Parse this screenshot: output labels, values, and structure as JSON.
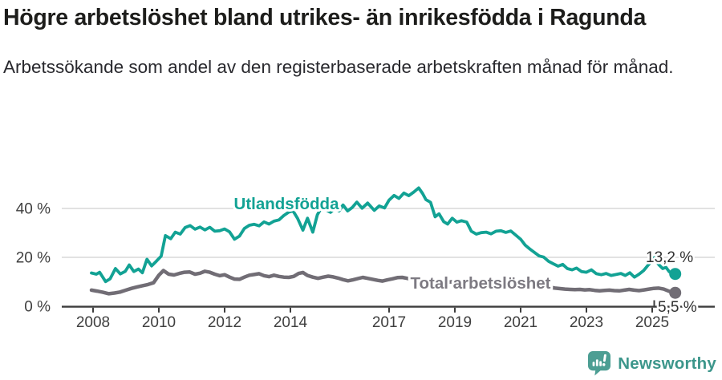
{
  "page": {
    "title": "Högre arbetslöshet bland utrikes- än inrikesfödda i Ragunda",
    "subtitle": "Arbetssökande som andel av den registerbaserade arbetskraften månad för månad."
  },
  "footer": {
    "brand": "Newsworthy",
    "logo_icon": "newsworthy-speech-bubble-bar-chart-icon"
  },
  "colors": {
    "foreign_born_line": "#12a294",
    "total_line": "#716d75",
    "total_label": "#7d7a82",
    "axis": "#3d3d3d",
    "tick_text": "#3f3f3f",
    "gridline": "#d9d9d9",
    "end_label_text": "#2f2f2f",
    "brand_text": "#3c968b",
    "brand_icon": "#4c9e93",
    "background": "#ffffff"
  },
  "chart_data": {
    "type": "line",
    "title": "Högre arbetslöshet bland utrikes- än inrikesfödda i Ragunda",
    "subtitle": "Arbetssökande som andel av den registerbaserade arbetskraften månad för månad.",
    "unit": "%",
    "frequency": "monthly",
    "grid": "horizontal-only",
    "legend_position": "inline-series-labels",
    "x_axis": {
      "ticks": [
        2008,
        2010,
        2012,
        2014,
        2017,
        2019,
        2021,
        2023,
        2025
      ],
      "tick_labels": [
        "2008",
        "2010",
        "2012",
        "2014",
        "2017",
        "2019",
        "2021",
        "2023",
        "2025"
      ],
      "range_years": [
        2007.0,
        2026.9
      ]
    },
    "y_axis": {
      "ticks": [
        0,
        20,
        40
      ],
      "tick_labels": [
        "0 %",
        "20 %",
        "40 %"
      ],
      "gridlines": [
        20,
        40
      ],
      "range": [
        0,
        50
      ]
    },
    "series": [
      {
        "name": "Utlandsfödda",
        "color_key": "foreign_born_line",
        "label_color_key": "foreign_born_line",
        "end_label": "13,2 %",
        "end_value": 13.2,
        "points": [
          [
            2007.95,
            13.6
          ],
          [
            2008.1,
            13.1
          ],
          [
            2008.2,
            13.9
          ],
          [
            2008.38,
            10.1
          ],
          [
            2008.52,
            11.2
          ],
          [
            2008.68,
            15.4
          ],
          [
            2008.83,
            13.2
          ],
          [
            2008.98,
            14.3
          ],
          [
            2009.1,
            16.9
          ],
          [
            2009.24,
            14.2
          ],
          [
            2009.38,
            15.2
          ],
          [
            2009.5,
            13.7
          ],
          [
            2009.64,
            19.2
          ],
          [
            2009.78,
            16.5
          ],
          [
            2009.93,
            18.5
          ],
          [
            2010.07,
            20.5
          ],
          [
            2010.2,
            28.9
          ],
          [
            2010.36,
            27.6
          ],
          [
            2010.5,
            30.3
          ],
          [
            2010.65,
            29.5
          ],
          [
            2010.8,
            32.2
          ],
          [
            2010.95,
            33.0
          ],
          [
            2011.1,
            31.5
          ],
          [
            2011.25,
            32.4
          ],
          [
            2011.4,
            31.2
          ],
          [
            2011.55,
            32.3
          ],
          [
            2011.7,
            30.7
          ],
          [
            2011.85,
            30.9
          ],
          [
            2012.0,
            31.6
          ],
          [
            2012.15,
            30.4
          ],
          [
            2012.3,
            27.4
          ],
          [
            2012.45,
            28.7
          ],
          [
            2012.6,
            31.8
          ],
          [
            2012.75,
            33.1
          ],
          [
            2012.9,
            33.5
          ],
          [
            2013.05,
            32.9
          ],
          [
            2013.2,
            34.5
          ],
          [
            2013.35,
            33.6
          ],
          [
            2013.5,
            34.8
          ],
          [
            2013.65,
            35.3
          ],
          [
            2013.8,
            37.1
          ],
          [
            2013.95,
            38.5
          ],
          [
            2014.08,
            39.0
          ],
          [
            2014.22,
            35.9
          ],
          [
            2014.38,
            31.1
          ],
          [
            2014.52,
            36.0
          ],
          [
            2014.68,
            30.3
          ],
          [
            2014.82,
            37.4
          ],
          [
            2014.95,
            40.5
          ],
          [
            2015.1,
            39.3
          ],
          [
            2015.22,
            38.4
          ],
          [
            2015.35,
            40.0
          ],
          [
            2015.48,
            39.0
          ],
          [
            2015.6,
            41.4
          ],
          [
            2015.74,
            39.0
          ],
          [
            2015.88,
            40.4
          ],
          [
            2016.02,
            42.6
          ],
          [
            2016.18,
            40.1
          ],
          [
            2016.35,
            42.2
          ],
          [
            2016.55,
            39.2
          ],
          [
            2016.7,
            41.0
          ],
          [
            2016.86,
            40.2
          ],
          [
            2017.0,
            43.4
          ],
          [
            2017.15,
            45.3
          ],
          [
            2017.3,
            44.1
          ],
          [
            2017.45,
            46.3
          ],
          [
            2017.6,
            45.2
          ],
          [
            2017.75,
            46.7
          ],
          [
            2017.9,
            48.4
          ],
          [
            2018.02,
            46.1
          ],
          [
            2018.12,
            43.6
          ],
          [
            2018.26,
            42.5
          ],
          [
            2018.4,
            36.6
          ],
          [
            2018.52,
            37.8
          ],
          [
            2018.66,
            34.6
          ],
          [
            2018.78,
            33.6
          ],
          [
            2018.92,
            36.0
          ],
          [
            2019.06,
            34.4
          ],
          [
            2019.2,
            35.0
          ],
          [
            2019.36,
            34.4
          ],
          [
            2019.5,
            30.7
          ],
          [
            2019.65,
            29.5
          ],
          [
            2019.8,
            30.1
          ],
          [
            2019.95,
            30.3
          ],
          [
            2020.1,
            29.6
          ],
          [
            2020.25,
            30.7
          ],
          [
            2020.4,
            30.9
          ],
          [
            2020.55,
            30.2
          ],
          [
            2020.7,
            30.8
          ],
          [
            2020.85,
            29.1
          ],
          [
            2021.0,
            27.4
          ],
          [
            2021.14,
            25.0
          ],
          [
            2021.28,
            23.4
          ],
          [
            2021.42,
            22.0
          ],
          [
            2021.56,
            20.6
          ],
          [
            2021.7,
            20.1
          ],
          [
            2021.85,
            18.4
          ],
          [
            2022.0,
            17.3
          ],
          [
            2022.14,
            16.4
          ],
          [
            2022.28,
            17.1
          ],
          [
            2022.42,
            15.4
          ],
          [
            2022.56,
            14.9
          ],
          [
            2022.7,
            15.6
          ],
          [
            2022.85,
            14.2
          ],
          [
            2023.0,
            13.9
          ],
          [
            2023.15,
            14.9
          ],
          [
            2023.3,
            13.3
          ],
          [
            2023.45,
            12.9
          ],
          [
            2023.6,
            13.4
          ],
          [
            2023.75,
            12.6
          ],
          [
            2023.9,
            13.0
          ],
          [
            2024.05,
            13.4
          ],
          [
            2024.18,
            12.6
          ],
          [
            2024.32,
            13.7
          ],
          [
            2024.46,
            11.9
          ],
          [
            2024.6,
            13.1
          ],
          [
            2024.74,
            14.6
          ],
          [
            2024.86,
            16.6
          ],
          [
            2024.96,
            18.1
          ],
          [
            2025.06,
            19.8
          ],
          [
            2025.2,
            17.0
          ],
          [
            2025.32,
            15.4
          ],
          [
            2025.42,
            15.9
          ],
          [
            2025.52,
            14.1
          ],
          [
            2025.62,
            13.5
          ],
          [
            2025.7,
            13.2
          ]
        ]
      },
      {
        "name": "Total arbetslöshet",
        "color_key": "total_line",
        "label_color_key": "total_label",
        "end_label": "5,5 %",
        "end_value": 5.5,
        "points": [
          [
            2007.95,
            6.6
          ],
          [
            2008.12,
            6.2
          ],
          [
            2008.3,
            5.7
          ],
          [
            2008.48,
            5.1
          ],
          [
            2008.65,
            5.4
          ],
          [
            2008.82,
            5.8
          ],
          [
            2009.0,
            6.6
          ],
          [
            2009.17,
            7.3
          ],
          [
            2009.34,
            7.9
          ],
          [
            2009.5,
            8.4
          ],
          [
            2009.67,
            8.9
          ],
          [
            2009.84,
            9.6
          ],
          [
            2010.0,
            12.7
          ],
          [
            2010.14,
            14.6
          ],
          [
            2010.3,
            13.1
          ],
          [
            2010.46,
            12.8
          ],
          [
            2010.62,
            13.4
          ],
          [
            2010.78,
            13.9
          ],
          [
            2010.94,
            14.0
          ],
          [
            2011.1,
            13.1
          ],
          [
            2011.25,
            13.5
          ],
          [
            2011.4,
            14.3
          ],
          [
            2011.55,
            13.9
          ],
          [
            2011.7,
            13.1
          ],
          [
            2011.85,
            12.5
          ],
          [
            2012.0,
            12.9
          ],
          [
            2012.15,
            11.9
          ],
          [
            2012.3,
            11.1
          ],
          [
            2012.45,
            11.0
          ],
          [
            2012.6,
            11.9
          ],
          [
            2012.75,
            12.7
          ],
          [
            2012.9,
            13.0
          ],
          [
            2013.05,
            13.3
          ],
          [
            2013.2,
            12.5
          ],
          [
            2013.35,
            12.1
          ],
          [
            2013.5,
            12.7
          ],
          [
            2013.65,
            12.2
          ],
          [
            2013.8,
            11.9
          ],
          [
            2013.95,
            11.8
          ],
          [
            2014.1,
            12.2
          ],
          [
            2014.25,
            13.4
          ],
          [
            2014.38,
            13.8
          ],
          [
            2014.52,
            12.6
          ],
          [
            2014.68,
            11.9
          ],
          [
            2014.84,
            11.4
          ],
          [
            2015.0,
            11.9
          ],
          [
            2015.15,
            12.3
          ],
          [
            2015.3,
            12.0
          ],
          [
            2015.45,
            11.5
          ],
          [
            2015.6,
            10.9
          ],
          [
            2015.75,
            10.4
          ],
          [
            2015.9,
            10.8
          ],
          [
            2016.05,
            11.3
          ],
          [
            2016.2,
            11.8
          ],
          [
            2016.35,
            11.4
          ],
          [
            2016.5,
            11.0
          ],
          [
            2016.65,
            10.6
          ],
          [
            2016.8,
            10.3
          ],
          [
            2016.95,
            10.8
          ],
          [
            2017.1,
            11.2
          ],
          [
            2017.25,
            11.7
          ],
          [
            2017.4,
            11.8
          ],
          [
            2017.55,
            11.4
          ],
          [
            2017.7,
            11.0
          ],
          [
            2017.85,
            10.7
          ],
          [
            2018.0,
            10.4
          ],
          [
            2018.15,
            10.7
          ],
          [
            2018.3,
            10.9
          ],
          [
            2018.45,
            10.5
          ],
          [
            2018.6,
            10.1
          ],
          [
            2018.75,
            9.8
          ],
          [
            2018.9,
            10.0
          ],
          [
            2019.05,
            10.2
          ],
          [
            2019.2,
            9.9
          ],
          [
            2019.35,
            9.6
          ],
          [
            2019.5,
            9.4
          ],
          [
            2019.65,
            9.2
          ],
          [
            2019.8,
            9.4
          ],
          [
            2019.95,
            9.7
          ],
          [
            2020.1,
            10.3
          ],
          [
            2020.25,
            10.6
          ],
          [
            2020.4,
            10.3
          ],
          [
            2020.55,
            10.0
          ],
          [
            2020.7,
            9.7
          ],
          [
            2020.85,
            9.4
          ],
          [
            2021.0,
            9.2
          ],
          [
            2021.15,
            9.0
          ],
          [
            2021.3,
            8.7
          ],
          [
            2021.45,
            8.4
          ],
          [
            2021.6,
            8.1
          ],
          [
            2021.75,
            7.9
          ],
          [
            2021.9,
            7.7
          ],
          [
            2022.05,
            7.4
          ],
          [
            2022.2,
            7.2
          ],
          [
            2022.35,
            7.0
          ],
          [
            2022.5,
            6.9
          ],
          [
            2022.65,
            6.8
          ],
          [
            2022.8,
            6.9
          ],
          [
            2022.95,
            6.7
          ],
          [
            2023.1,
            6.8
          ],
          [
            2023.25,
            6.5
          ],
          [
            2023.4,
            6.3
          ],
          [
            2023.55,
            6.5
          ],
          [
            2023.7,
            6.6
          ],
          [
            2023.85,
            6.4
          ],
          [
            2024.0,
            6.3
          ],
          [
            2024.15,
            6.6
          ],
          [
            2024.3,
            6.9
          ],
          [
            2024.45,
            6.6
          ],
          [
            2024.6,
            6.4
          ],
          [
            2024.75,
            6.7
          ],
          [
            2024.9,
            7.0
          ],
          [
            2025.05,
            7.3
          ],
          [
            2025.2,
            7.4
          ],
          [
            2025.35,
            7.0
          ],
          [
            2025.5,
            6.2
          ],
          [
            2025.6,
            5.8
          ],
          [
            2025.7,
            5.5
          ]
        ]
      }
    ]
  }
}
